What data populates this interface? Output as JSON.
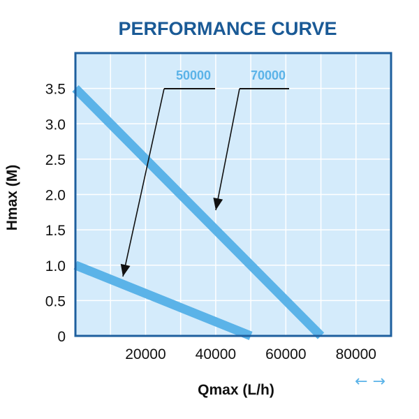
{
  "chart_data": {
    "type": "line",
    "title": "PERFORMANCE CURVE",
    "xlabel": "Qmax (L/h)",
    "ylabel": "Hmax (M)",
    "xlim": [
      0,
      90000
    ],
    "ylim": [
      0,
      4.0
    ],
    "x_ticks": [
      20000,
      40000,
      60000,
      80000
    ],
    "x_tick_labels": [
      "20000",
      "40000",
      "60000",
      "80000"
    ],
    "y_ticks": [
      0,
      0.5,
      1.0,
      1.5,
      2.0,
      2.5,
      3.0,
      3.5
    ],
    "y_tick_labels": [
      "0",
      "0.5",
      "1.0",
      "1.5",
      "2.0",
      "2.5",
      "3.0",
      "3.5"
    ],
    "grid": true,
    "series": [
      {
        "name": "50000",
        "x": [
          0,
          50000
        ],
        "y": [
          1.0,
          0
        ],
        "color": "#5bb3e8"
      },
      {
        "name": "70000",
        "x": [
          0,
          70000
        ],
        "y": [
          3.5,
          0
        ],
        "color": "#5bb3e8"
      }
    ],
    "background_color": "#d4ebfb",
    "border_color": "#1e5f9e",
    "grid_color": "#ffffff",
    "title_color": "#1a5a96",
    "line_color": "#5bb3e8",
    "footer_arrows": "← →",
    "footer_arrows_color": "#5bb3e8"
  }
}
